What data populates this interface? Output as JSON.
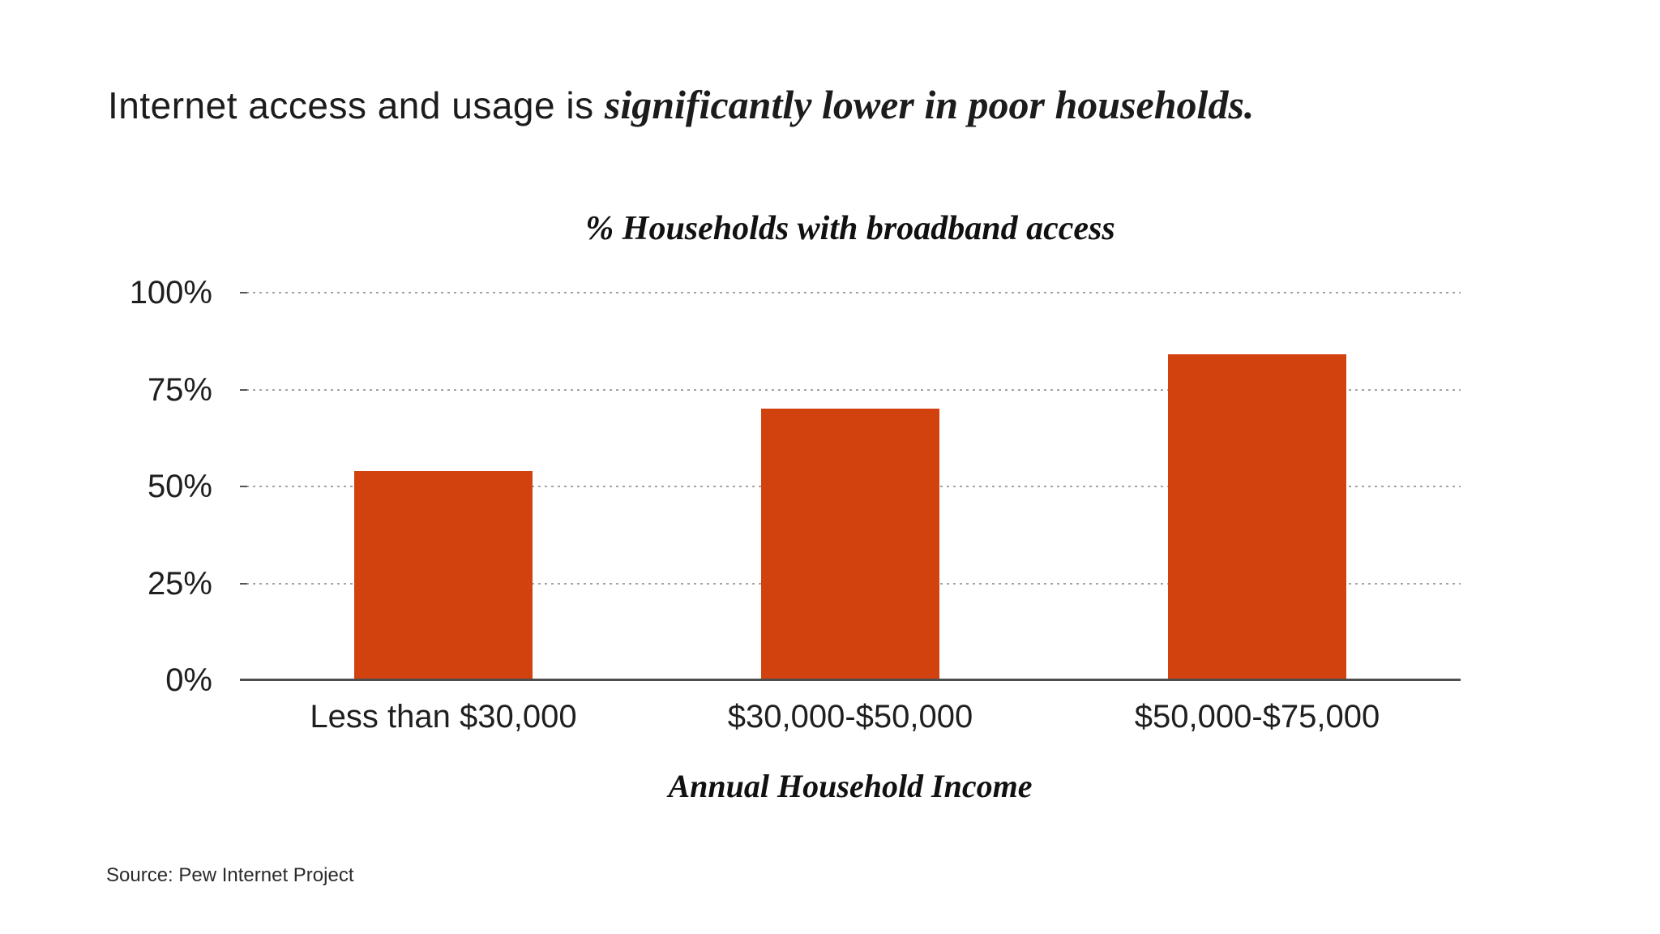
{
  "page": {
    "title_regular": "Internet access and usage is ",
    "title_emphasis": "significantly lower in poor households.",
    "source": "Source: Pew Internet Project"
  },
  "chart_data": {
    "type": "bar",
    "title": "% Households with broadband access",
    "xlabel": "Annual Household Income",
    "ylabel": "",
    "categories": [
      "Less than $30,000",
      "$30,000-$50,000",
      "$50,000-$75,000"
    ],
    "values": [
      54,
      70,
      84
    ],
    "ylim": [
      0,
      100
    ],
    "yticks": [
      {
        "value": 0,
        "label": "0%"
      },
      {
        "value": 25,
        "label": "25%"
      },
      {
        "value": 50,
        "label": "50%"
      },
      {
        "value": 75,
        "label": "75%"
      },
      {
        "value": 100,
        "label": "100%"
      }
    ],
    "grid": "horizontal-dotted",
    "legend": "none",
    "bar_color": "#d2420f",
    "axis_color": "#4d4d4d",
    "gridline_color": "#a3a3a3"
  }
}
